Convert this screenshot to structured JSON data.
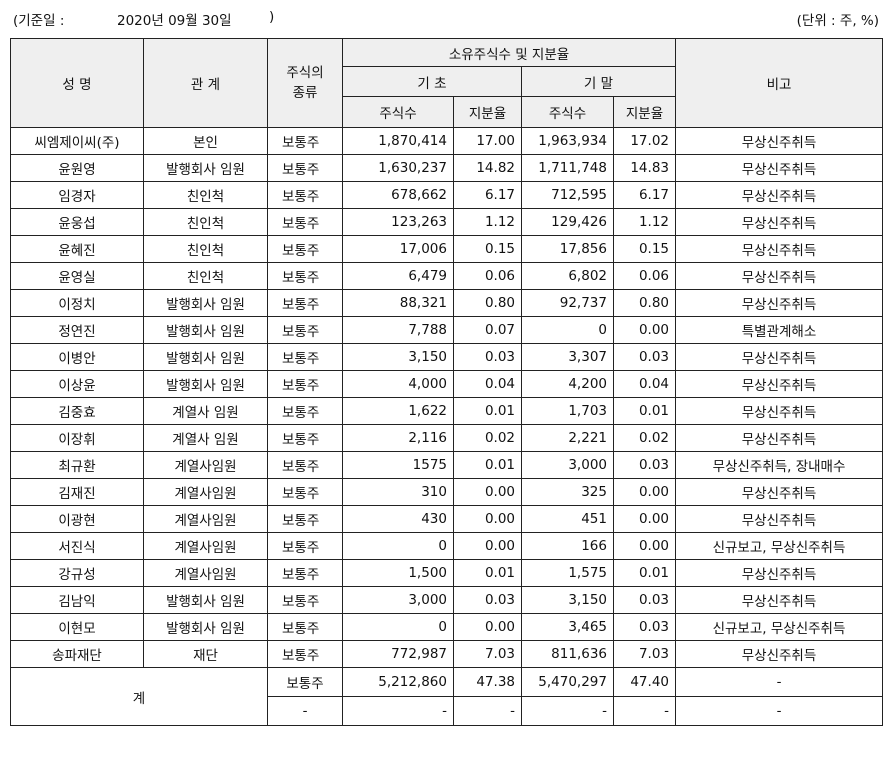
{
  "meta": {
    "base_date_label": "(기준일 :",
    "base_date_value": "2020년 09월 30일",
    "base_date_close": ")",
    "unit_label": "(단위 : 주, %)"
  },
  "header": {
    "name": "성 명",
    "relation": "관 계",
    "stock_type": "주식의\n종류",
    "ownership": "소유주식수 및 지분율",
    "period_start": "기 초",
    "period_end": "기 말",
    "shares": "주식수",
    "ratio": "지분율",
    "remarks": "비고"
  },
  "rows": [
    {
      "name": "씨엠제이씨(주)",
      "relation": "본인",
      "type": "보통주",
      "start_shares": "1,870,414",
      "start_ratio": "17.00",
      "end_shares": "1,963,934",
      "end_ratio": "17.02",
      "remarks": "무상신주취득"
    },
    {
      "name": "윤원영",
      "relation": "발행회사 임원",
      "type": "보통주",
      "start_shares": "1,630,237",
      "start_ratio": "14.82",
      "end_shares": "1,711,748",
      "end_ratio": "14.83",
      "remarks": "무상신주취득"
    },
    {
      "name": "임경자",
      "relation": "친인척",
      "type": "보통주",
      "start_shares": "678,662",
      "start_ratio": "6.17",
      "end_shares": "712,595",
      "end_ratio": "6.17",
      "remarks": "무상신주취득"
    },
    {
      "name": "윤웅섭",
      "relation": "친인척",
      "type": "보통주",
      "start_shares": "123,263",
      "start_ratio": "1.12",
      "end_shares": "129,426",
      "end_ratio": "1.12",
      "remarks": "무상신주취득"
    },
    {
      "name": "윤혜진",
      "relation": "친인척",
      "type": "보통주",
      "start_shares": "17,006",
      "start_ratio": "0.15",
      "end_shares": "17,856",
      "end_ratio": "0.15",
      "remarks": "무상신주취득"
    },
    {
      "name": "윤영실",
      "relation": "친인척",
      "type": "보통주",
      "start_shares": "6,479",
      "start_ratio": "0.06",
      "end_shares": "6,802",
      "end_ratio": "0.06",
      "remarks": "무상신주취득"
    },
    {
      "name": "이정치",
      "relation": "발행회사 임원",
      "type": "보통주",
      "start_shares": "88,321",
      "start_ratio": "0.80",
      "end_shares": "92,737",
      "end_ratio": "0.80",
      "remarks": "무상신주취득"
    },
    {
      "name": "정연진",
      "relation": "발행회사 임원",
      "type": "보통주",
      "start_shares": "7,788",
      "start_ratio": "0.07",
      "end_shares": "0",
      "end_ratio": "0.00",
      "remarks": "특별관계해소"
    },
    {
      "name": "이병안",
      "relation": "발행회사 임원",
      "type": "보통주",
      "start_shares": "3,150",
      "start_ratio": "0.03",
      "end_shares": "3,307",
      "end_ratio": "0.03",
      "remarks": "무상신주취득"
    },
    {
      "name": "이상윤",
      "relation": "발행회사 임원",
      "type": "보통주",
      "start_shares": "4,000",
      "start_ratio": "0.04",
      "end_shares": "4,200",
      "end_ratio": "0.04",
      "remarks": "무상신주취득"
    },
    {
      "name": "김중효",
      "relation": "계열사 임원",
      "type": "보통주",
      "start_shares": "1,622",
      "start_ratio": "0.01",
      "end_shares": "1,703",
      "end_ratio": "0.01",
      "remarks": "무상신주취득"
    },
    {
      "name": "이장휘",
      "relation": "계열사 임원",
      "type": "보통주",
      "start_shares": "2,116",
      "start_ratio": "0.02",
      "end_shares": "2,221",
      "end_ratio": "0.02",
      "remarks": "무상신주취득"
    },
    {
      "name": "최규환",
      "relation": "계열사임원",
      "type": "보통주",
      "start_shares": "1575",
      "start_ratio": "0.01",
      "end_shares": "3,000",
      "end_ratio": "0.03",
      "remarks": "무상신주취득, 장내매수"
    },
    {
      "name": "김재진",
      "relation": "계열사임원",
      "type": "보통주",
      "start_shares": "310",
      "start_ratio": "0.00",
      "end_shares": "325",
      "end_ratio": "0.00",
      "remarks": "무상신주취득"
    },
    {
      "name": "이광현",
      "relation": "계열사임원",
      "type": "보통주",
      "start_shares": "430",
      "start_ratio": "0.00",
      "end_shares": "451",
      "end_ratio": "0.00",
      "remarks": "무상신주취득"
    },
    {
      "name": "서진식",
      "relation": "계열사임원",
      "type": "보통주",
      "start_shares": "0",
      "start_ratio": "0.00",
      "end_shares": "166",
      "end_ratio": "0.00",
      "remarks": "신규보고, 무상신주취득"
    },
    {
      "name": "강규성",
      "relation": "계열사임원",
      "type": "보통주",
      "start_shares": "1,500",
      "start_ratio": "0.01",
      "end_shares": "1,575",
      "end_ratio": "0.01",
      "remarks": "무상신주취득"
    },
    {
      "name": "김남익",
      "relation": "발행회사 임원",
      "type": "보통주",
      "start_shares": "3,000",
      "start_ratio": "0.03",
      "end_shares": "3,150",
      "end_ratio": "0.03",
      "remarks": "무상신주취득"
    },
    {
      "name": "이현모",
      "relation": "발행회사 임원",
      "type": "보통주",
      "start_shares": "0",
      "start_ratio": "0.00",
      "end_shares": "3,465",
      "end_ratio": "0.03",
      "remarks": "신규보고, 무상신주취득"
    },
    {
      "name": "송파재단",
      "relation": "재단",
      "type": "보통주",
      "start_shares": "772,987",
      "start_ratio": "7.03",
      "end_shares": "811,636",
      "end_ratio": "7.03",
      "remarks": "무상신주취득"
    }
  ],
  "total": {
    "label": "계",
    "rows": [
      {
        "type": "보통주",
        "start_shares": "5,212,860",
        "start_ratio": "47.38",
        "end_shares": "5,470,297",
        "end_ratio": "47.40",
        "remarks": "-"
      },
      {
        "type": "-",
        "start_shares": "-",
        "start_ratio": "-",
        "end_shares": "-",
        "end_ratio": "-",
        "remarks": "-"
      }
    ]
  }
}
